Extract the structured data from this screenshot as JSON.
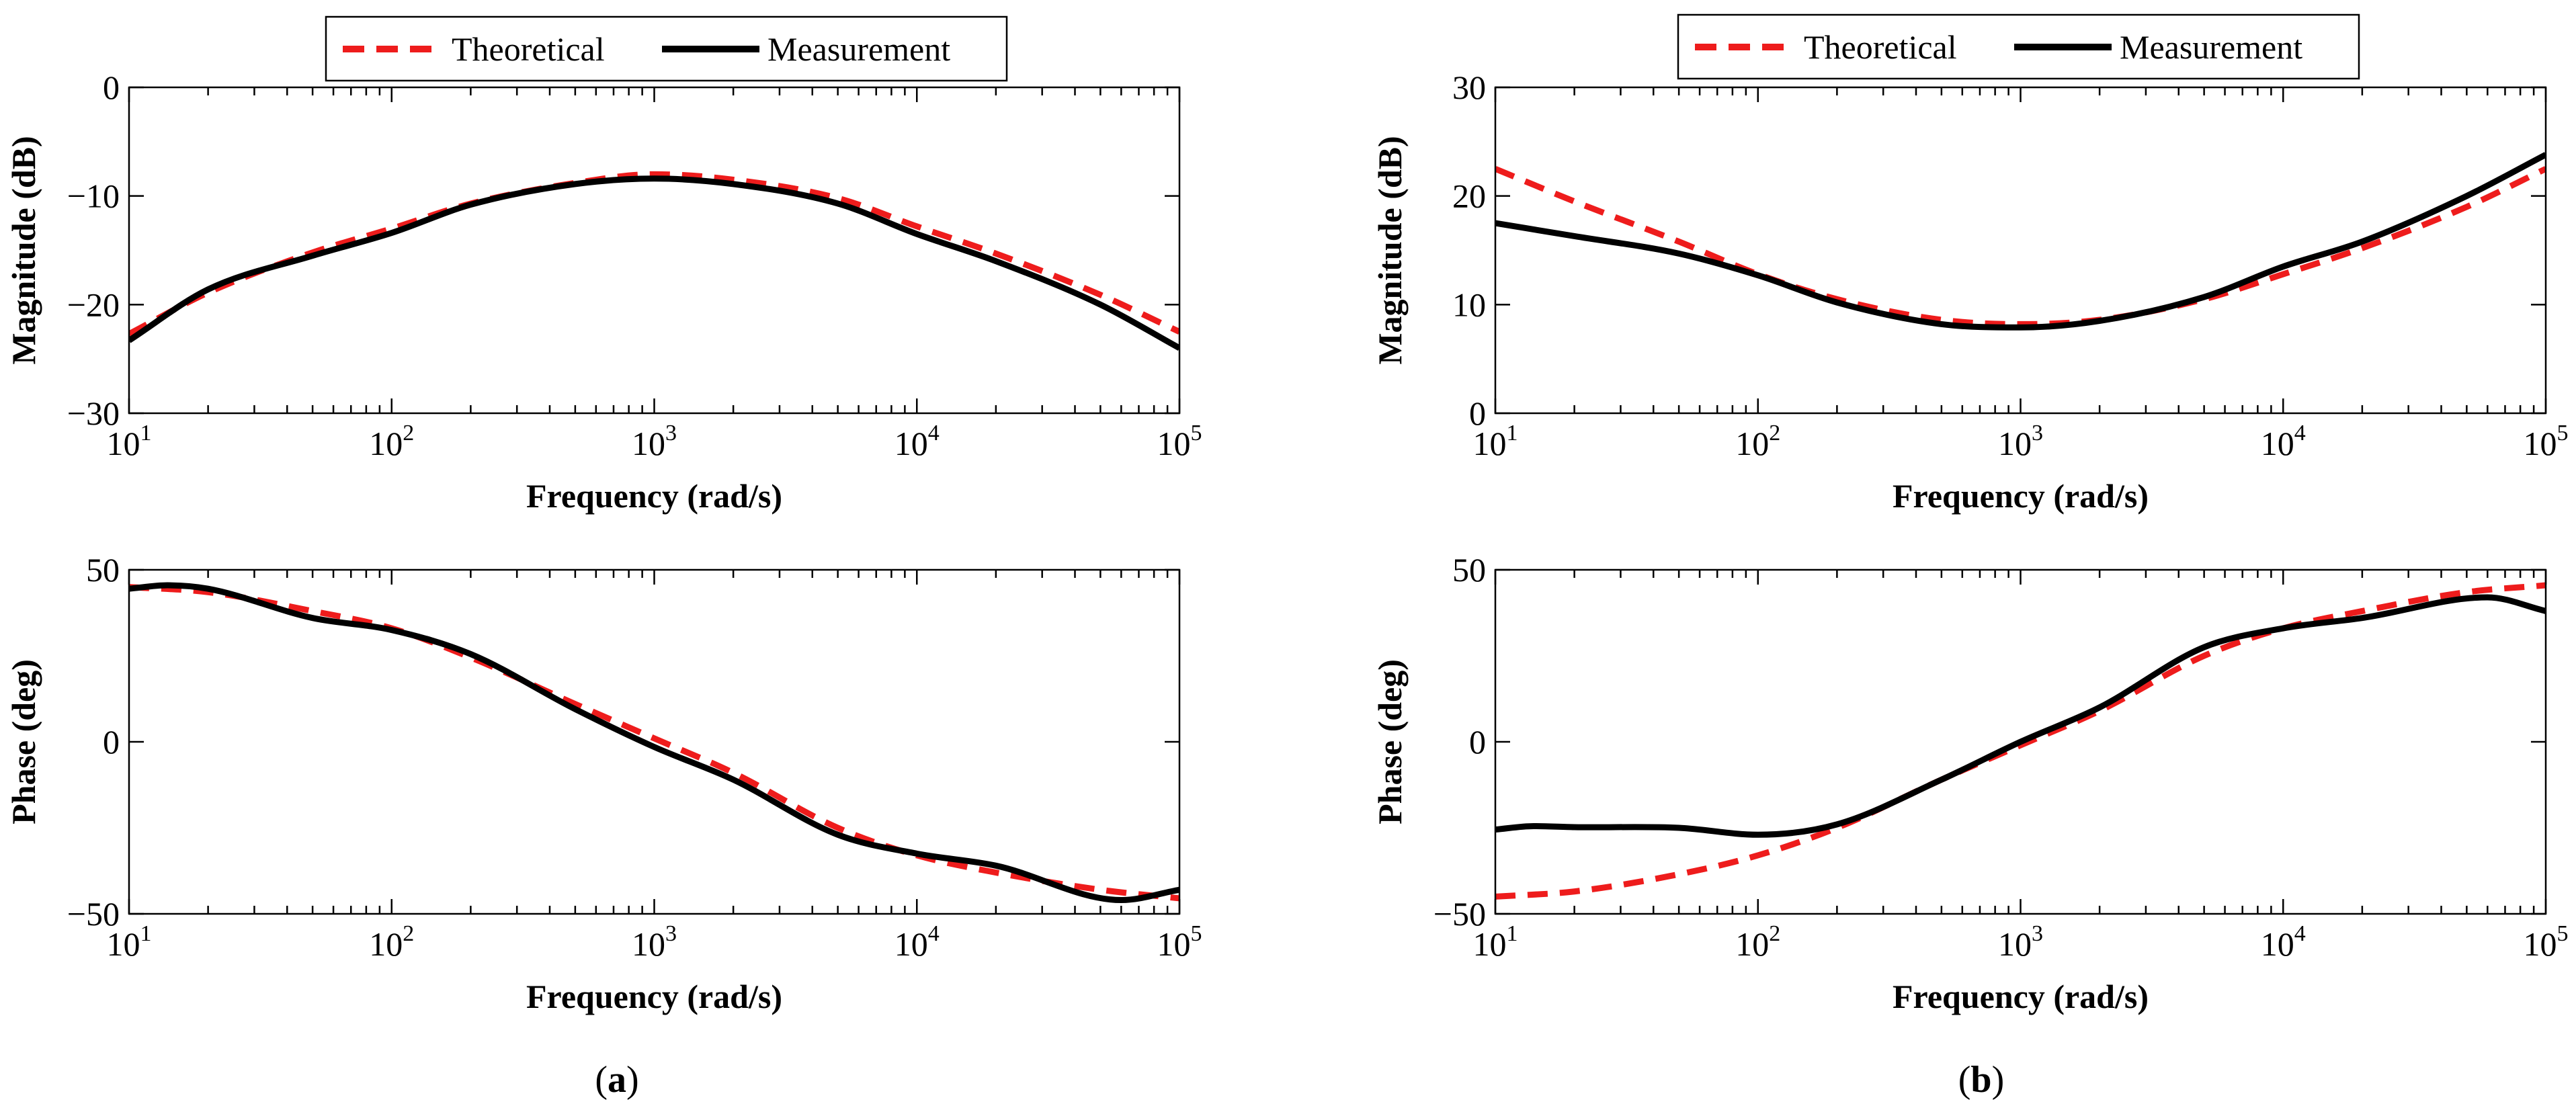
{
  "chart_data": [
    {
      "id": "a-mag",
      "type": "line",
      "panel": "a",
      "xscale": "log",
      "xlim": [
        10,
        100000
      ],
      "ylim": [
        -30,
        0
      ],
      "xlabel": "Frequency (rad/s)",
      "ylabel": "Magnitude (dB)",
      "xticks": [
        "10",
        "10",
        "10",
        "10",
        "10"
      ],
      "xtick_exponents": [
        "1",
        "2",
        "3",
        "4",
        "5"
      ],
      "yticks": [
        0,
        -10,
        -20,
        -30
      ],
      "ytick_labels": [
        "0",
        "−10",
        "−20",
        "−30"
      ],
      "legend": true,
      "series": [
        {
          "name": "Theoretical",
          "style": "dashed",
          "color": "#ee1c1c",
          "x": [
            10,
            20,
            50,
            100,
            200,
            500,
            1000,
            2000,
            5000,
            10000,
            20000,
            50000,
            100000
          ],
          "values": [
            -22.7,
            -18.9,
            -15.2,
            -13.0,
            -10.7,
            -8.8,
            -8.0,
            -8.5,
            -10.2,
            -12.8,
            -15.3,
            -19.1,
            -22.5
          ]
        },
        {
          "name": "Measurement",
          "style": "solid",
          "color": "#000000",
          "x": [
            10,
            20,
            50,
            100,
            200,
            500,
            1000,
            2000,
            5000,
            10000,
            20000,
            50000,
            100000
          ],
          "values": [
            -23.3,
            -18.6,
            -15.5,
            -13.4,
            -10.8,
            -8.9,
            -8.4,
            -8.9,
            -10.7,
            -13.5,
            -16.0,
            -20.0,
            -24.0
          ]
        }
      ]
    },
    {
      "id": "a-phase",
      "type": "line",
      "panel": "a",
      "xscale": "log",
      "xlim": [
        10,
        100000
      ],
      "ylim": [
        -50,
        50
      ],
      "xlabel": "Frequency (rad/s)",
      "ylabel": "Phase (deg)",
      "xticks": [
        "10",
        "10",
        "10",
        "10",
        "10"
      ],
      "xtick_exponents": [
        "1",
        "2",
        "3",
        "4",
        "5"
      ],
      "yticks": [
        50,
        0,
        -50
      ],
      "ytick_labels": [
        "50",
        "0",
        "−50"
      ],
      "legend": false,
      "series": [
        {
          "name": "Theoretical",
          "style": "dashed",
          "color": "#ee1c1c",
          "x": [
            10,
            20,
            50,
            100,
            200,
            500,
            1000,
            2000,
            5000,
            10000,
            20000,
            50000,
            100000
          ],
          "values": [
            45.0,
            43.5,
            38.0,
            33.0,
            24.5,
            11.0,
            1.0,
            -9.0,
            -25.0,
            -33.0,
            -38.0,
            -43.0,
            -45.5
          ]
        },
        {
          "name": "Measurement",
          "style": "solid",
          "color": "#000000",
          "x": [
            10,
            14,
            20,
            50,
            100,
            200,
            500,
            1000,
            2000,
            5000,
            10000,
            20000,
            60000,
            100000
          ],
          "values": [
            44.5,
            45.5,
            44.5,
            36.0,
            32.5,
            25.5,
            9.5,
            -1.5,
            -11.0,
            -27.0,
            -32.5,
            -36.0,
            -46.0,
            -43.0
          ]
        }
      ]
    },
    {
      "id": "b-mag",
      "type": "line",
      "panel": "b",
      "xscale": "log",
      "xlim": [
        10,
        100000
      ],
      "ylim": [
        0,
        30
      ],
      "xlabel": "Frequency (rad/s)",
      "ylabel": "Magnitude (dB)",
      "xticks": [
        "10",
        "10",
        "10",
        "10",
        "10"
      ],
      "xtick_exponents": [
        "1",
        "2",
        "3",
        "4",
        "5"
      ],
      "yticks": [
        30,
        20,
        10,
        0
      ],
      "ytick_labels": [
        "30",
        "20",
        "10",
        "0"
      ],
      "legend": true,
      "series": [
        {
          "name": "Theoretical",
          "style": "dashed",
          "color": "#ee1c1c",
          "x": [
            10,
            20,
            50,
            100,
            200,
            500,
            1000,
            2000,
            5000,
            10000,
            20000,
            50000,
            100000
          ],
          "values": [
            22.5,
            19.5,
            15.8,
            12.8,
            10.5,
            8.6,
            8.2,
            8.6,
            10.5,
            12.8,
            15.2,
            19.0,
            22.5
          ]
        },
        {
          "name": "Measurement",
          "style": "solid",
          "color": "#000000",
          "x": [
            10,
            20,
            50,
            100,
            200,
            500,
            1000,
            2000,
            5000,
            10000,
            20000,
            50000,
            100000
          ],
          "values": [
            17.5,
            16.3,
            14.7,
            12.7,
            10.2,
            8.2,
            7.9,
            8.5,
            10.7,
            13.5,
            15.8,
            20.0,
            23.8
          ]
        }
      ]
    },
    {
      "id": "b-phase",
      "type": "line",
      "panel": "b",
      "xscale": "log",
      "xlim": [
        10,
        100000
      ],
      "ylim": [
        -50,
        50
      ],
      "xlabel": "Frequency (rad/s)",
      "ylabel": "Phase (deg)",
      "xticks": [
        "10",
        "10",
        "10",
        "10",
        "10"
      ],
      "xtick_exponents": [
        "1",
        "2",
        "3",
        "4",
        "5"
      ],
      "yticks": [
        50,
        0,
        -50
      ],
      "ytick_labels": [
        "50",
        "0",
        "−50"
      ],
      "legend": false,
      "series": [
        {
          "name": "Theoretical",
          "style": "dashed",
          "color": "#ee1c1c",
          "x": [
            10,
            20,
            50,
            100,
            200,
            500,
            1000,
            2000,
            5000,
            10000,
            20000,
            50000,
            100000
          ],
          "values": [
            -45.0,
            -43.5,
            -38.5,
            -33.0,
            -25.0,
            -11.0,
            -1.0,
            9.0,
            25.0,
            33.0,
            38.0,
            43.5,
            45.5
          ]
        },
        {
          "name": "Measurement",
          "style": "solid",
          "color": "#000000",
          "x": [
            10,
            14,
            20,
            50,
            100,
            200,
            500,
            1000,
            2000,
            5000,
            10000,
            20000,
            60000,
            100000
          ],
          "values": [
            -25.5,
            -24.5,
            -24.8,
            -25.0,
            -27.0,
            -24.0,
            -11.0,
            0.0,
            10.0,
            27.5,
            33.0,
            36.0,
            42.0,
            38.0
          ]
        }
      ]
    }
  ],
  "legend": {
    "theoretical": "Theoretical",
    "measurement": "Measurement"
  },
  "panel_labels": [
    {
      "open": "(",
      "letter": "a",
      "close": ")"
    },
    {
      "open": "(",
      "letter": "b",
      "close": ")"
    }
  ],
  "colors": {
    "theoretical": "#ee1c1c",
    "measurement": "#000000"
  }
}
